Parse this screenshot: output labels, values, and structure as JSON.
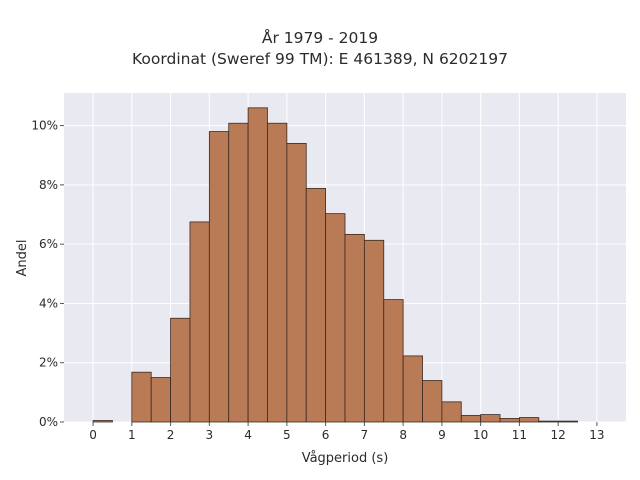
{
  "chart_data": {
    "type": "bar",
    "title": "År 1979 - 2019",
    "subtitle": "Koordinat (Sweref 99 TM): E 461389, N 6202197",
    "xlabel": "Vågperiod (s)",
    "ylabel": "Andel",
    "xlim": [
      -0.75,
      13.75
    ],
    "ylim": [
      0,
      0.111
    ],
    "x_ticks": [
      0,
      1,
      2,
      3,
      4,
      5,
      6,
      7,
      8,
      9,
      10,
      11,
      12,
      13
    ],
    "y_ticks": [
      0,
      0.02,
      0.04,
      0.06,
      0.08,
      0.1
    ],
    "y_tick_labels": [
      "0%",
      "2%",
      "4%",
      "6%",
      "8%",
      "10%"
    ],
    "grid": true,
    "bin_width": 0.5,
    "bins": [
      {
        "x0": 0.0,
        "value": 0.0005
      },
      {
        "x0": 1.0,
        "value": 0.0168
      },
      {
        "x0": 1.5,
        "value": 0.015
      },
      {
        "x0": 2.0,
        "value": 0.035
      },
      {
        "x0": 2.5,
        "value": 0.0675
      },
      {
        "x0": 3.0,
        "value": 0.098
      },
      {
        "x0": 3.5,
        "value": 0.1008
      },
      {
        "x0": 4.0,
        "value": 0.106
      },
      {
        "x0": 4.5,
        "value": 0.1008
      },
      {
        "x0": 5.0,
        "value": 0.094
      },
      {
        "x0": 5.5,
        "value": 0.0788
      },
      {
        "x0": 6.0,
        "value": 0.0703
      },
      {
        "x0": 6.5,
        "value": 0.0633
      },
      {
        "x0": 7.0,
        "value": 0.0613
      },
      {
        "x0": 7.5,
        "value": 0.0413
      },
      {
        "x0": 8.0,
        "value": 0.0223
      },
      {
        "x0": 8.5,
        "value": 0.014
      },
      {
        "x0": 9.0,
        "value": 0.0068
      },
      {
        "x0": 9.5,
        "value": 0.0022
      },
      {
        "x0": 10.0,
        "value": 0.0025
      },
      {
        "x0": 10.5,
        "value": 0.0012
      },
      {
        "x0": 11.0,
        "value": 0.0015
      },
      {
        "x0": 11.5,
        "value": 0.0003
      },
      {
        "x0": 12.0,
        "value": 0.0003
      }
    ],
    "colors": {
      "bar_fill": "#b97a56",
      "bar_edge": "#3b2a20",
      "plot_bg": "#e9e9f1",
      "grid": "#ffffff"
    }
  }
}
